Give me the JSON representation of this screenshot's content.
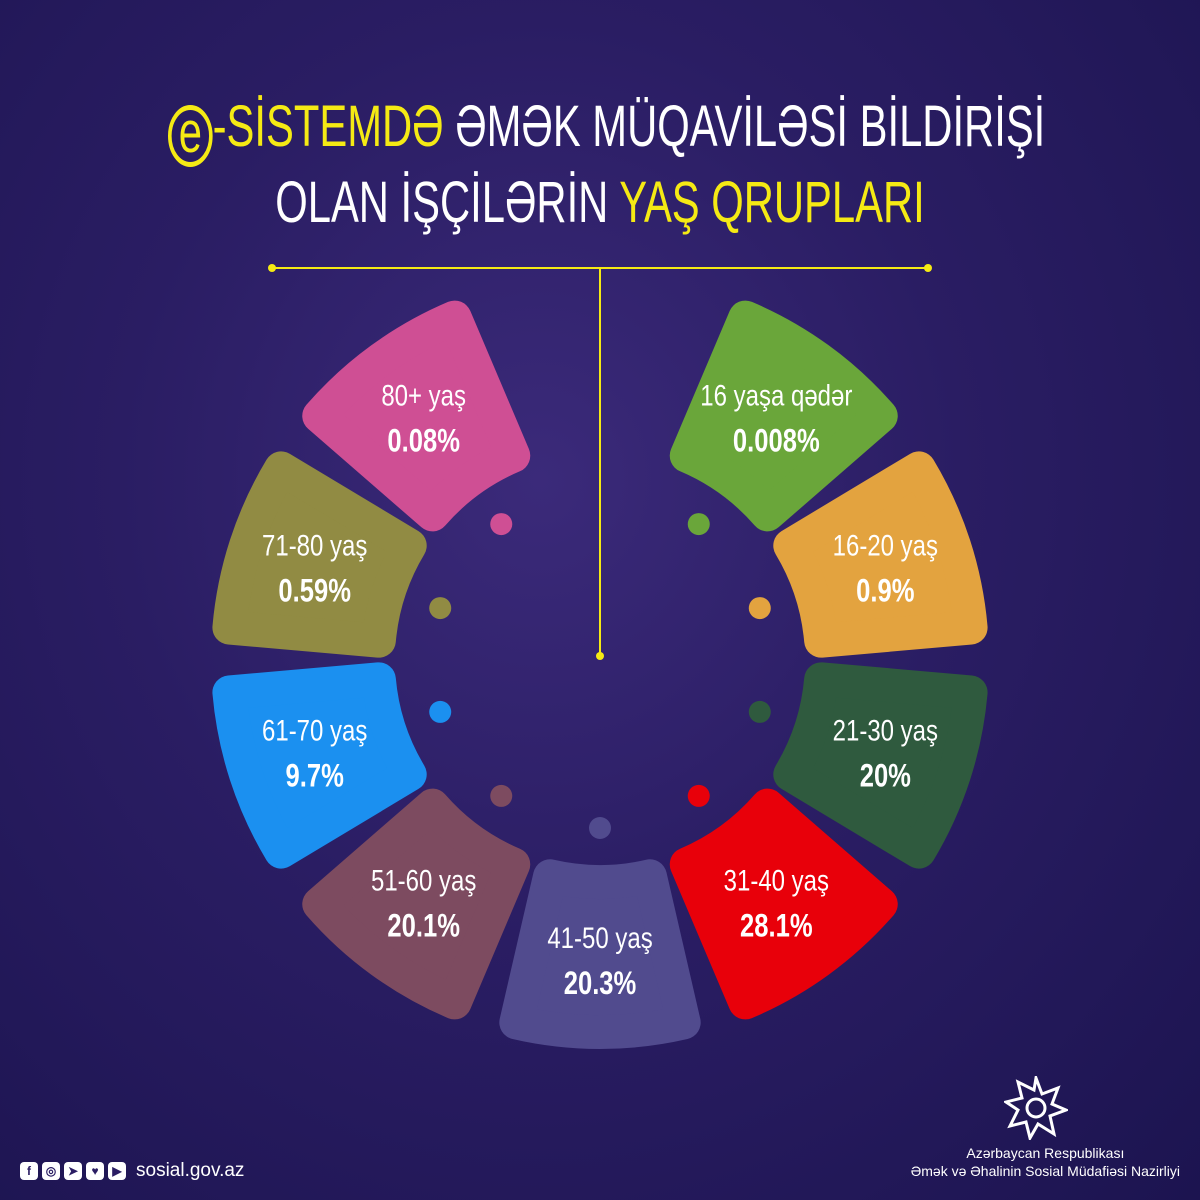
{
  "title": {
    "line1_prefix": "e",
    "line1_yellow": "-SİSTEMDƏ",
    "line1_white": " ƏMƏK MÜQAVİLƏSİ BİLDİRİŞİ",
    "line2_white": "OLAN İŞÇİLƏRİN ",
    "line2_yellow": "YAŞ QRUPLARI"
  },
  "chart_data": {
    "type": "pie",
    "title": "e-SİSTEMDƏ ƏMƏK MÜQAVİLƏSİ BİLDİRİŞİ OLAN İŞÇİLƏRİN YAŞ QRUPLARI",
    "unit": "%",
    "categories": [
      "16 yaşa qədər",
      "16-20 yaş",
      "21-30 yaş",
      "31-40 yaş",
      "41-50 yaş",
      "51-60 yaş",
      "61-70 yaş",
      "71-80 yaş",
      "80+ yaş"
    ],
    "values": [
      0.008,
      0.9,
      20,
      28.1,
      20.3,
      20.1,
      9.7,
      0.59,
      0.08
    ],
    "value_labels": [
      "0.008%",
      "0.9%",
      "20%",
      "28.1%",
      "20.3%",
      "20.1%",
      "9.7%",
      "0.59%",
      "0.08%"
    ],
    "colors": [
      "#6aa63a",
      "#e3a33f",
      "#2f5a3e",
      "#e8000a",
      "#514b8e",
      "#7d4b60",
      "#1b90f0",
      "#918b43",
      "#cf4f94"
    ]
  },
  "footer": {
    "social_icons": [
      "facebook-icon",
      "instagram-icon",
      "telegram-icon",
      "twitter-icon",
      "youtube-icon"
    ],
    "website": "sosial.gov.az",
    "ministry_line1": "Azərbaycan Respublikası",
    "ministry_line2": "Əmək və Əhalinin Sosial Müdafiəsi Nazirliyi"
  },
  "accent": "#f5ea14"
}
